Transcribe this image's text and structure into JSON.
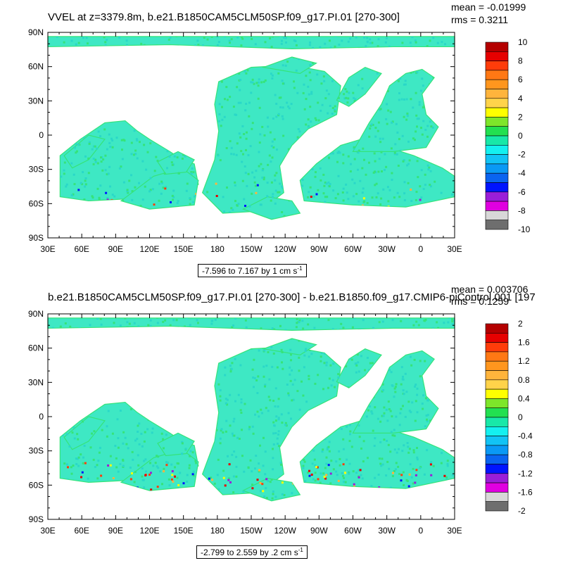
{
  "colors": {
    "land": "#ffffff",
    "ocean_base": "#3ee8c4",
    "ocean_mid": "#35e37a",
    "levels": [
      "#6e6e6e",
      "#d8d8d8",
      "#e000e0",
      "#9a1ed8",
      "#0014ff",
      "#0a64f0",
      "#0a99f5",
      "#12c3f5",
      "#14f0f0",
      "#18e8a8",
      "#22e050",
      "#7ee62a",
      "#ffff00",
      "#ffd34a",
      "#ffb43c",
      "#ff961e",
      "#ff7814",
      "#ff3c0a",
      "#e60000",
      "#b40000"
    ]
  },
  "x_ticks": [
    "30E",
    "60E",
    "90E",
    "120E",
    "150E",
    "180",
    "150W",
    "120W",
    "90W",
    "60W",
    "30W",
    "0",
    "30E"
  ],
  "y_ticks": [
    "90N",
    "60N",
    "30N",
    "0",
    "30S",
    "60S",
    "90S"
  ],
  "panels": [
    {
      "title": "VVEL at z=3379.8m, b.e21.B1850CAM5CLM50SP.f09_g17.PI.01 [270-300]",
      "mean": "mean = -0.01999",
      "rms": "rms = 0.3211",
      "contour_prefix": "-7.596 to 7.167 by 1 cm s",
      "contour_exp": "-1",
      "colorbar_labels": [
        "10",
        "8",
        "6",
        "4",
        "2",
        "0",
        "-2",
        "-4",
        "-6",
        "-8",
        "-10"
      ]
    },
    {
      "title": "b.e21.B1850CAM5CLM50SP.f09_g17.PI.01 [270-300] - b.e21.B1850.f09_g17.CMIP6-piControl.001 [197",
      "mean": "mean = 0.003706",
      "rms": "rms = 0.1259",
      "contour_prefix": "-2.799 to 2.559 by .2 cm s",
      "contour_exp": "-1",
      "colorbar_labels": [
        "2",
        "1.6",
        "1.2",
        "0.8",
        "0.4",
        "0",
        "-0.4",
        "-0.8",
        "-1.2",
        "-1.6",
        "-2"
      ]
    }
  ]
}
